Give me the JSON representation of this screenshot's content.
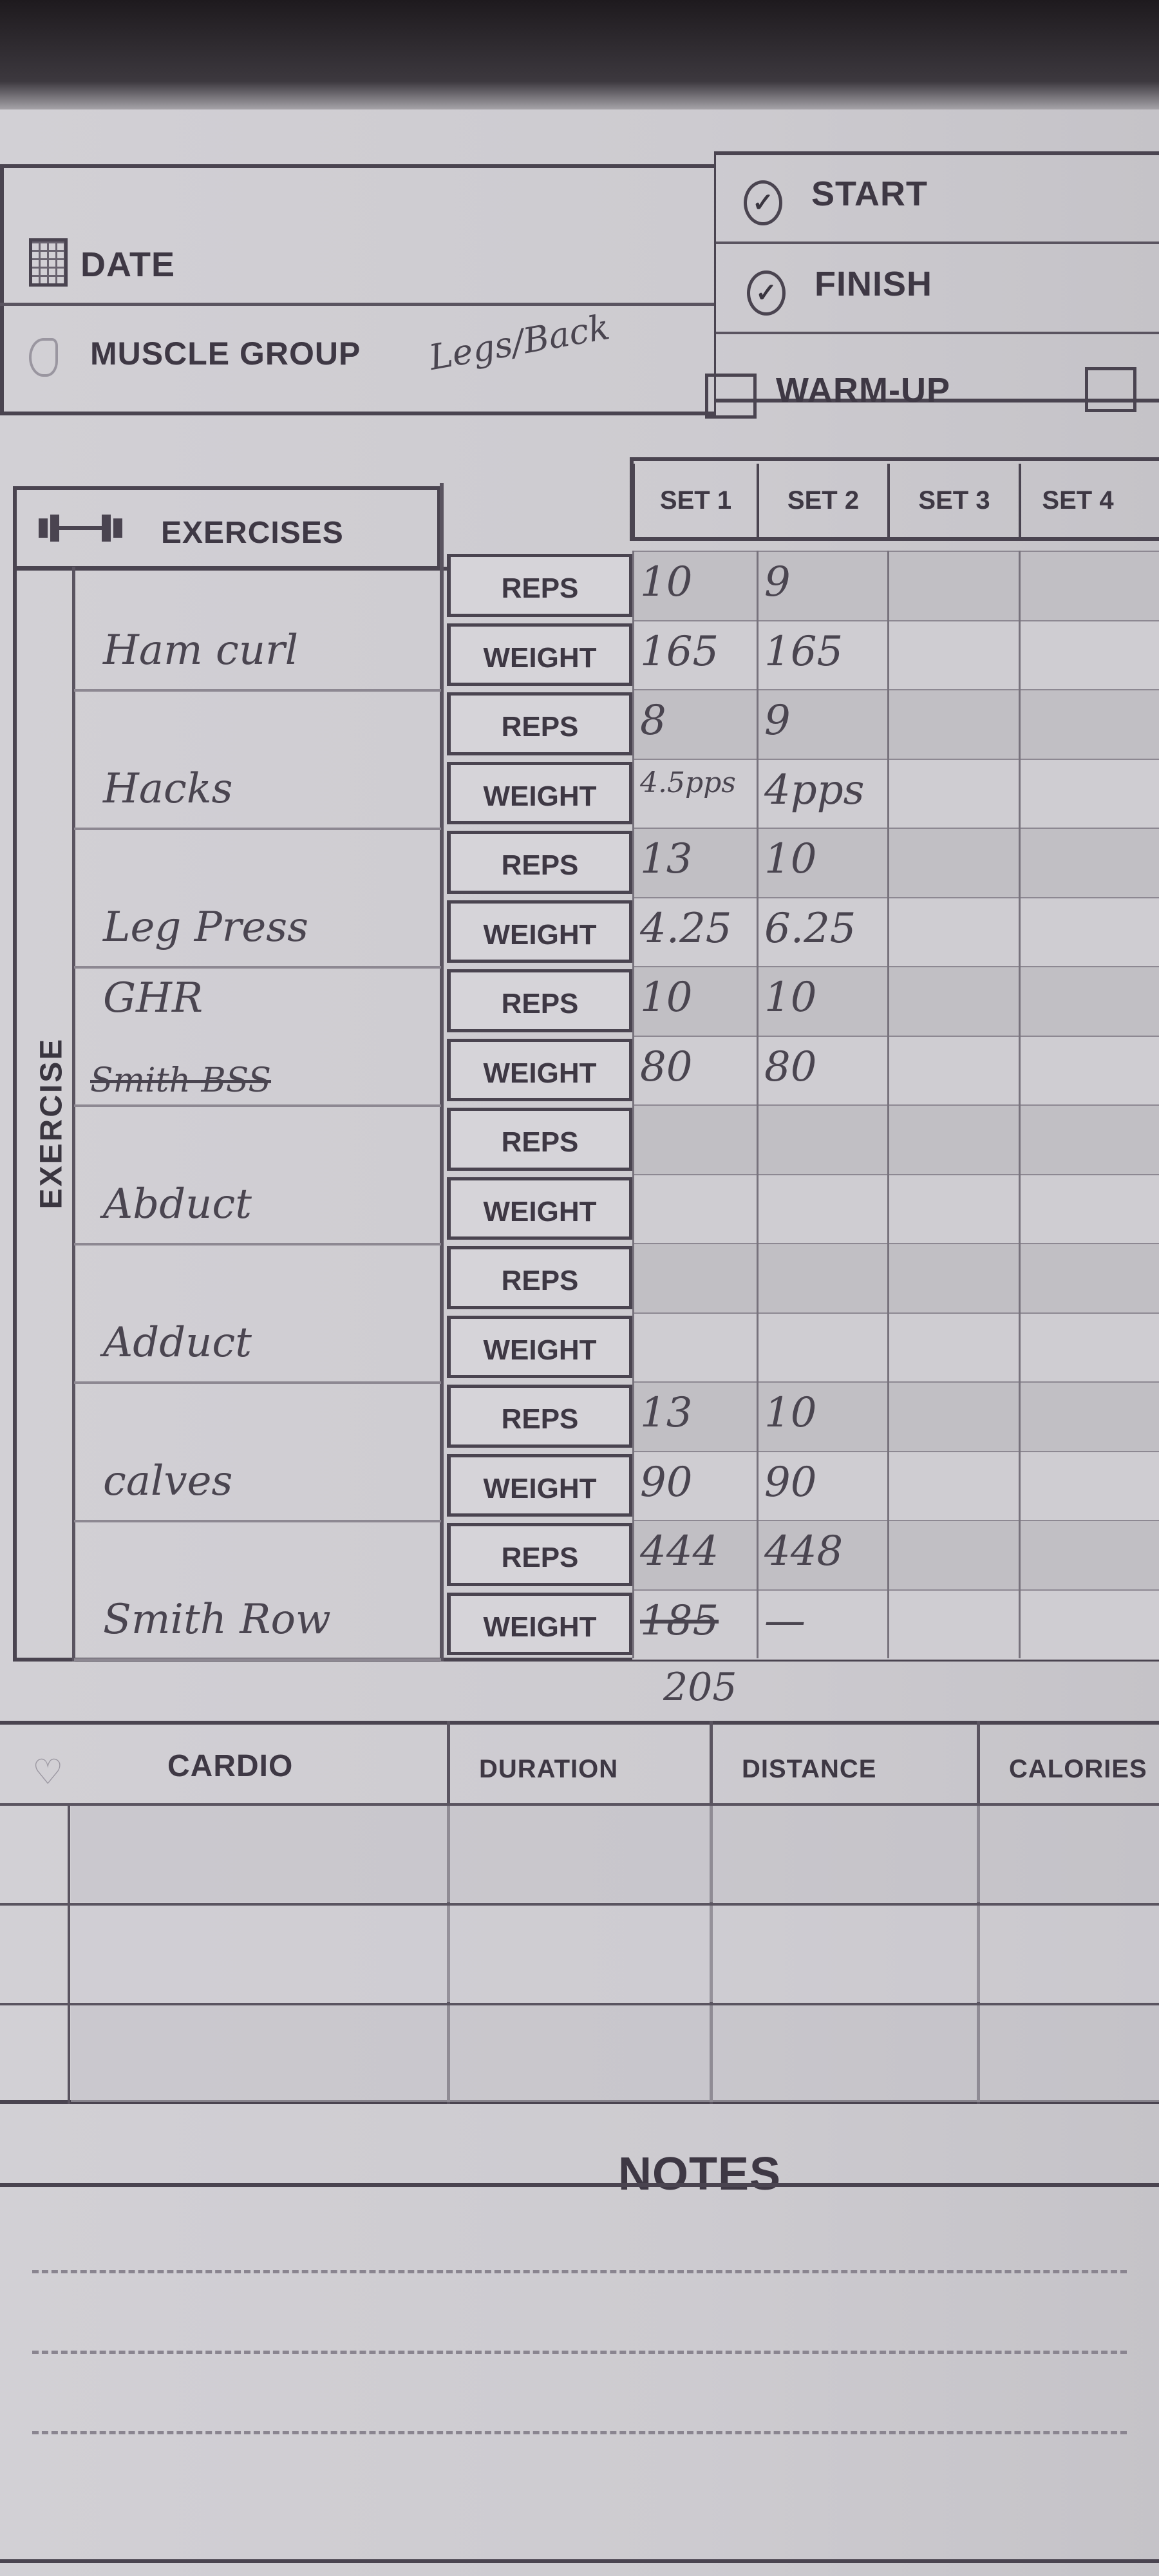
{
  "header": {
    "date_label": "DATE",
    "muscle_group_label": "MUSCLE GROUP",
    "muscle_group_value": "Legs/Back",
    "start_label": "START",
    "finish_label": "FINISH",
    "warmup_label": "WARM-UP",
    "warmup_checked": false
  },
  "exercises": {
    "title": "EXERCISES",
    "side_label": "EXERCISE",
    "sets": [
      "SET 1",
      "SET 2",
      "SET 3",
      "SET 4"
    ],
    "reps_label": "REPS",
    "weight_label": "WEIGHT",
    "items": [
      {
        "name": "Ham curl",
        "reps": [
          "10",
          "9",
          "",
          ""
        ],
        "weight": [
          "165",
          "165",
          "",
          ""
        ]
      },
      {
        "name": "Hacks",
        "reps": [
          "8",
          "9",
          "",
          ""
        ],
        "weight": [
          "4.5pps",
          "4pps",
          "",
          ""
        ]
      },
      {
        "name": "Leg Press",
        "reps": [
          "13",
          "10",
          "",
          ""
        ],
        "weight": [
          "4.25",
          "6.25",
          "",
          ""
        ]
      },
      {
        "name": "GHR",
        "struck_name": "Smith BSS",
        "reps": [
          "10",
          "10",
          "",
          ""
        ],
        "weight": [
          "80",
          "80",
          "",
          ""
        ]
      },
      {
        "name": "Abduct",
        "reps": [
          "",
          "",
          "",
          ""
        ],
        "weight": [
          "",
          "",
          "",
          ""
        ]
      },
      {
        "name": "Adduct",
        "reps": [
          "",
          "",
          "",
          ""
        ],
        "weight": [
          "",
          "",
          "",
          ""
        ]
      },
      {
        "name": "calves",
        "reps": [
          "13",
          "10",
          "",
          ""
        ],
        "weight": [
          "90",
          "90",
          "",
          ""
        ]
      },
      {
        "name": "Smith Row",
        "reps": [
          "444",
          "448",
          "",
          ""
        ],
        "weight": [
          "185",
          "—",
          "",
          ""
        ],
        "weight_struck": [
          true,
          false,
          false,
          false
        ]
      }
    ],
    "below_note": "205"
  },
  "cardio": {
    "title": "CARDIO",
    "columns": [
      "DURATION",
      "DISTANCE",
      "CALORIES"
    ],
    "rows": [
      [
        "",
        "",
        ""
      ],
      [
        "",
        "",
        ""
      ],
      [
        "",
        "",
        ""
      ]
    ]
  },
  "notes": {
    "title": "NOTES"
  }
}
